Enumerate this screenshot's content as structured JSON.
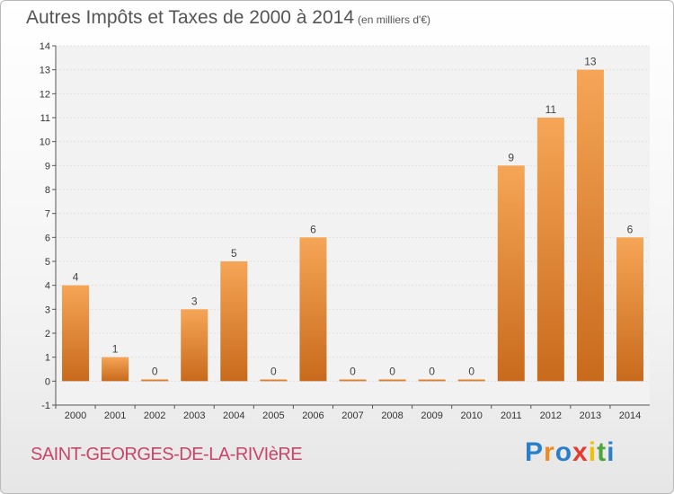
{
  "header": {
    "title": "Autres Impôts et Taxes de 2000 à 2014",
    "unit": "(en milliers d'€)"
  },
  "footer": {
    "commune": "SAINT-GEORGES-DE-LA-RIVIèRE",
    "logo": [
      "P",
      "r",
      "o",
      "x",
      "i",
      "t",
      "i"
    ],
    "logo_colors": [
      "#2a7fc9",
      "#f08a1e",
      "#2a7fc9",
      "#e33b2e",
      "#f2c000",
      "#4aa63a",
      "#2a7fc9"
    ]
  },
  "colors": {
    "bar_light": "#f6a556",
    "bar_dark": "#c86a1c",
    "plot_bg": "#f2f2f2",
    "grid": "#e0e0e0"
  },
  "chart_data": {
    "type": "bar",
    "categories": [
      "2000",
      "2001",
      "2002",
      "2003",
      "2004",
      "2005",
      "2006",
      "2007",
      "2008",
      "2009",
      "2010",
      "2011",
      "2012",
      "2013",
      "2014"
    ],
    "values": [
      4,
      1,
      0,
      3,
      5,
      0,
      6,
      0,
      0,
      0,
      0,
      9,
      11,
      13,
      6
    ],
    "yticks": [
      "-1",
      "0",
      "1",
      "2",
      "3",
      "4",
      "5",
      "6",
      "7",
      "8",
      "9",
      "10",
      "11",
      "12",
      "13",
      "14"
    ],
    "ylim": [
      -1,
      14
    ],
    "title": "Autres Impôts et Taxes de 2000 à 2014",
    "xlabel": "",
    "ylabel": "",
    "grid": true
  }
}
